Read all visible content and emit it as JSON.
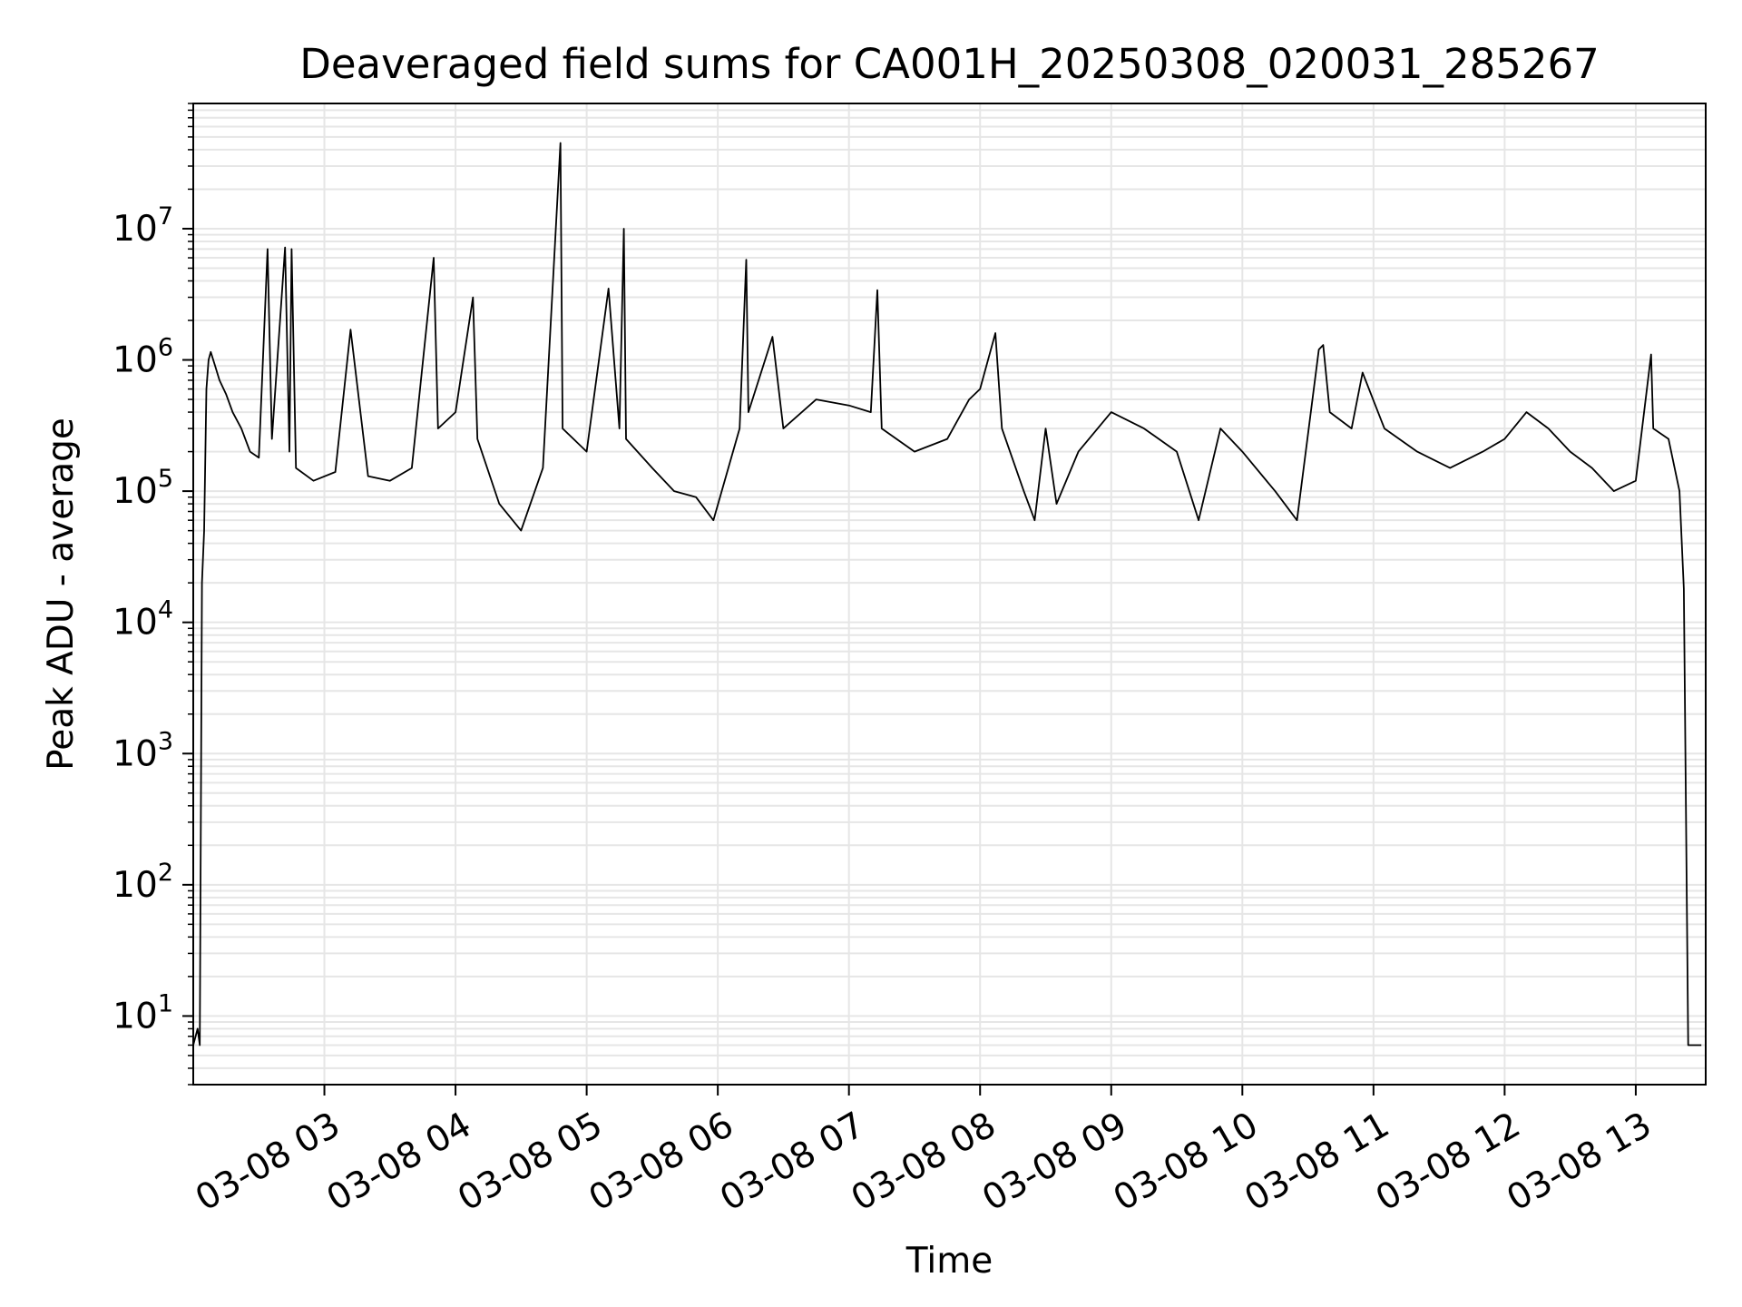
{
  "chart_data": {
    "type": "line",
    "title": "Deaveraged field sums for CA001H_20250308_020031_285267",
    "xlabel": "Time",
    "ylabel": "Peak ADU - average",
    "yscale": "log",
    "ylim": [
      3,
      90000000
    ],
    "xlim": [
      "03-08 02:00",
      "03-08 13:32"
    ],
    "grid": true,
    "x_ticks": [
      {
        "time": "03-08 03:00",
        "label": "03-08 03"
      },
      {
        "time": "03-08 04:00",
        "label": "03-08 04"
      },
      {
        "time": "03-08 05:00",
        "label": "03-08 05"
      },
      {
        "time": "03-08 06:00",
        "label": "03-08 06"
      },
      {
        "time": "03-08 07:00",
        "label": "03-08 07"
      },
      {
        "time": "03-08 08:00",
        "label": "03-08 08"
      },
      {
        "time": "03-08 09:00",
        "label": "03-08 09"
      },
      {
        "time": "03-08 10:00",
        "label": "03-08 10"
      },
      {
        "time": "03-08 11:00",
        "label": "03-08 11"
      },
      {
        "time": "03-08 12:00",
        "label": "03-08 12"
      },
      {
        "time": "03-08 13:00",
        "label": "03-08 13"
      }
    ],
    "y_ticks": [
      {
        "value": 10,
        "base": "10",
        "exp": "1"
      },
      {
        "value": 100,
        "base": "10",
        "exp": "2"
      },
      {
        "value": 1000,
        "base": "10",
        "exp": "3"
      },
      {
        "value": 10000,
        "base": "10",
        "exp": "4"
      },
      {
        "value": 100000,
        "base": "10",
        "exp": "5"
      },
      {
        "value": 1000000,
        "base": "10",
        "exp": "6"
      },
      {
        "value": 10000000,
        "base": "10",
        "exp": "7"
      }
    ],
    "series": [
      {
        "color": "#000000",
        "points": [
          [
            "03-08 02:00",
            6
          ],
          [
            "03-08 02:02",
            8
          ],
          [
            "03-08 02:03",
            6
          ],
          [
            "03-08 02:04",
            20000
          ],
          [
            "03-08 02:05",
            50000
          ],
          [
            "03-08 02:06",
            600000
          ],
          [
            "03-08 02:07",
            1000000
          ],
          [
            "03-08 02:08",
            1150000
          ],
          [
            "03-08 02:10",
            900000
          ],
          [
            "03-08 02:12",
            700000
          ],
          [
            "03-08 02:15",
            550000
          ],
          [
            "03-08 02:18",
            400000
          ],
          [
            "03-08 02:22",
            300000
          ],
          [
            "03-08 02:26",
            200000
          ],
          [
            "03-08 02:30",
            180000
          ],
          [
            "03-08 02:34",
            7000000
          ],
          [
            "03-08 02:36",
            250000
          ],
          [
            "03-08 02:42",
            7200000
          ],
          [
            "03-08 02:44",
            200000
          ],
          [
            "03-08 02:45",
            7000000
          ],
          [
            "03-08 02:47",
            150000
          ],
          [
            "03-08 02:55",
            120000
          ],
          [
            "03-08 03:05",
            140000
          ],
          [
            "03-08 03:12",
            1700000
          ],
          [
            "03-08 03:20",
            130000
          ],
          [
            "03-08 03:30",
            120000
          ],
          [
            "03-08 03:40",
            150000
          ],
          [
            "03-08 03:50",
            6000000
          ],
          [
            "03-08 03:52",
            300000
          ],
          [
            "03-08 04:00",
            400000
          ],
          [
            "03-08 04:08",
            3000000
          ],
          [
            "03-08 04:10",
            250000
          ],
          [
            "03-08 04:20",
            80000
          ],
          [
            "03-08 04:30",
            50000
          ],
          [
            "03-08 04:40",
            150000
          ],
          [
            "03-08 04:48",
            45000000
          ],
          [
            "03-08 04:49",
            300000
          ],
          [
            "03-08 05:00",
            200000
          ],
          [
            "03-08 05:10",
            3500000
          ],
          [
            "03-08 05:15",
            300000
          ],
          [
            "03-08 05:17",
            10000000
          ],
          [
            "03-08 05:18",
            250000
          ],
          [
            "03-08 05:30",
            150000
          ],
          [
            "03-08 05:40",
            100000
          ],
          [
            "03-08 05:50",
            90000
          ],
          [
            "03-08 05:58",
            60000
          ],
          [
            "03-08 06:10",
            300000
          ],
          [
            "03-08 06:13",
            5800000
          ],
          [
            "03-08 06:14",
            400000
          ],
          [
            "03-08 06:25",
            1500000
          ],
          [
            "03-08 06:30",
            300000
          ],
          [
            "03-08 06:45",
            500000
          ],
          [
            "03-08 07:00",
            450000
          ],
          [
            "03-08 07:10",
            400000
          ],
          [
            "03-08 07:13",
            3400000
          ],
          [
            "03-08 07:15",
            300000
          ],
          [
            "03-08 07:30",
            200000
          ],
          [
            "03-08 07:45",
            250000
          ],
          [
            "03-08 07:55",
            500000
          ],
          [
            "03-08 08:00",
            600000
          ],
          [
            "03-08 08:07",
            1600000
          ],
          [
            "03-08 08:10",
            300000
          ],
          [
            "03-08 08:20",
            100000
          ],
          [
            "03-08 08:25",
            60000
          ],
          [
            "03-08 08:30",
            300000
          ],
          [
            "03-08 08:35",
            80000
          ],
          [
            "03-08 08:45",
            200000
          ],
          [
            "03-08 09:00",
            400000
          ],
          [
            "03-08 09:15",
            300000
          ],
          [
            "03-08 09:30",
            200000
          ],
          [
            "03-08 09:40",
            60000
          ],
          [
            "03-08 09:50",
            300000
          ],
          [
            "03-08 10:00",
            200000
          ],
          [
            "03-08 10:15",
            100000
          ],
          [
            "03-08 10:25",
            60000
          ],
          [
            "03-08 10:35",
            1200000
          ],
          [
            "03-08 10:37",
            1300000
          ],
          [
            "03-08 10:40",
            400000
          ],
          [
            "03-08 10:50",
            300000
          ],
          [
            "03-08 10:55",
            800000
          ],
          [
            "03-08 11:05",
            300000
          ],
          [
            "03-08 11:20",
            200000
          ],
          [
            "03-08 11:35",
            150000
          ],
          [
            "03-08 11:50",
            200000
          ],
          [
            "03-08 12:00",
            250000
          ],
          [
            "03-08 12:10",
            400000
          ],
          [
            "03-08 12:20",
            300000
          ],
          [
            "03-08 12:30",
            200000
          ],
          [
            "03-08 12:40",
            150000
          ],
          [
            "03-08 12:50",
            100000
          ],
          [
            "03-08 13:00",
            120000
          ],
          [
            "03-08 13:07",
            1100000
          ],
          [
            "03-08 13:08",
            300000
          ],
          [
            "03-08 13:15",
            250000
          ],
          [
            "03-08 13:20",
            100000
          ],
          [
            "03-08 13:22",
            18000
          ],
          [
            "03-08 13:24",
            6
          ],
          [
            "03-08 13:27",
            6
          ],
          [
            "03-08 13:30",
            6
          ]
        ]
      }
    ]
  }
}
